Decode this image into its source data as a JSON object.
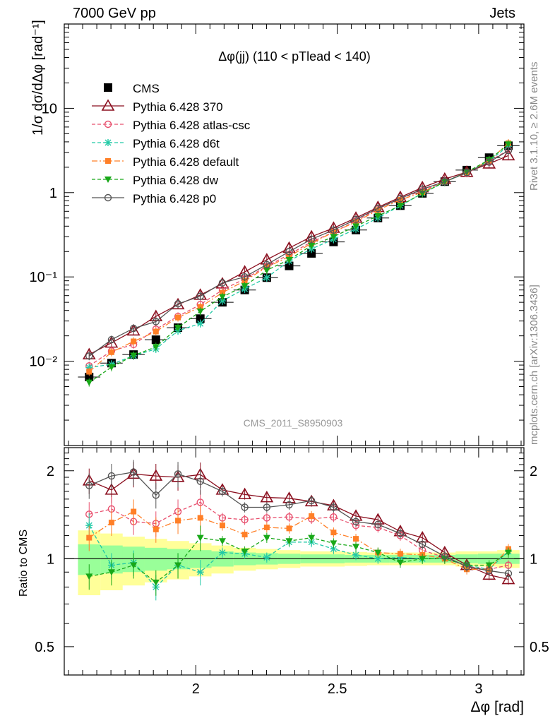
{
  "header": {
    "left": "7000 GeV pp",
    "right": "Jets"
  },
  "side": {
    "top": "Rivet 3.1.10, ≥ 2.6M events",
    "bottom": "mcplots.cern.ch [arXiv:1306.3436]"
  },
  "colors": {
    "cms": "#000000",
    "p370": "#8b0f1f",
    "atlas": "#e8506e",
    "d6t": "#22c9a6",
    "default": "#ff7f27",
    "dw": "#18a818",
    "p0": "#555555",
    "band_outer": "#ffff99",
    "band_inner": "#99ff99"
  },
  "chart_data": [
    {
      "type": "scatter",
      "title": "Δφ(jj) (110 < pTlead <  140)",
      "watermark": "CMS_2011_S8950903",
      "ylabel": "1/σ dσ/dΔφ [rad⁻¹]",
      "yscale": "log",
      "xlim": [
        1.535,
        3.16
      ],
      "ylim": [
        0.001,
        100
      ],
      "ytick_labels": [
        "10⁻²",
        "10⁻¹",
        "1",
        "10"
      ],
      "x": [
        1.623,
        1.702,
        1.78,
        1.859,
        1.937,
        2.016,
        2.094,
        2.173,
        2.251,
        2.33,
        2.409,
        2.487,
        2.566,
        2.644,
        2.723,
        2.801,
        2.88,
        2.958,
        3.037,
        3.105
      ],
      "series": [
        {
          "name": "CMS",
          "key": "cms",
          "values": [
            0.0065,
            0.0095,
            0.012,
            0.018,
            0.025,
            0.032,
            0.05,
            0.07,
            0.098,
            0.135,
            0.19,
            0.26,
            0.36,
            0.5,
            0.7,
            0.98,
            1.35,
            1.85,
            2.6,
            3.6
          ]
        },
        {
          "name": "Pythia 6.428 370",
          "key": "p370",
          "values": [
            0.012,
            0.0165,
            0.023,
            0.034,
            0.047,
            0.061,
            0.083,
            0.115,
            0.16,
            0.22,
            0.3,
            0.38,
            0.5,
            0.67,
            0.88,
            1.15,
            1.45,
            1.75,
            2.2,
            2.75
          ]
        },
        {
          "name": "Pythia 6.428 atlas-csc",
          "key": "atlas",
          "values": [
            0.0088,
            0.0132,
            0.0158,
            0.024,
            0.034,
            0.047,
            0.07,
            0.095,
            0.133,
            0.185,
            0.26,
            0.34,
            0.46,
            0.64,
            0.85,
            1.05,
            1.36,
            1.7,
            2.35,
            3.2
          ]
        },
        {
          "name": "Pythia 6.428 d6t",
          "key": "d6t",
          "values": [
            0.0084,
            0.0092,
            0.0116,
            0.014,
            0.023,
            0.028,
            0.052,
            0.072,
            0.098,
            0.155,
            0.215,
            0.28,
            0.37,
            0.5,
            0.7,
            0.98,
            1.33,
            1.73,
            2.4,
            3.55
          ]
        },
        {
          "name": "Pythia 6.428 default",
          "key": "default",
          "values": [
            0.0075,
            0.0128,
            0.0172,
            0.0225,
            0.033,
            0.044,
            0.065,
            0.09,
            0.13,
            0.175,
            0.25,
            0.34,
            0.45,
            0.62,
            0.82,
            1.01,
            1.34,
            1.73,
            2.4,
            3.85
          ]
        },
        {
          "name": "Pythia 6.428 dw",
          "key": "dw",
          "values": [
            0.0056,
            0.0085,
            0.0117,
            0.0148,
            0.025,
            0.039,
            0.058,
            0.078,
            0.12,
            0.16,
            0.235,
            0.3,
            0.4,
            0.53,
            0.7,
            0.98,
            1.34,
            1.75,
            2.45,
            3.75
          ]
        },
        {
          "name": "Pythia 6.428 p0",
          "key": "p0",
          "values": [
            0.0115,
            0.018,
            0.0245,
            0.0295,
            0.048,
            0.059,
            0.085,
            0.1,
            0.14,
            0.2,
            0.28,
            0.36,
            0.48,
            0.65,
            0.85,
            1.1,
            1.35,
            1.73,
            2.3,
            3.15
          ]
        }
      ]
    },
    {
      "type": "scatter",
      "ylabel": "Ratio to CMS",
      "xlabel": "Δφ [rad]",
      "yscale": "log",
      "xlim": [
        1.535,
        3.16
      ],
      "ylim": [
        0.4,
        2.4
      ],
      "xtick_labels": [
        "2",
        "2.5",
        "3"
      ],
      "ytick_labels": [
        "0.5",
        "1",
        "2"
      ],
      "x": [
        1.623,
        1.702,
        1.78,
        1.859,
        1.937,
        2.016,
        2.094,
        2.173,
        2.251,
        2.33,
        2.409,
        2.487,
        2.566,
        2.644,
        2.723,
        2.801,
        2.88,
        2.958,
        3.037,
        3.105
      ],
      "band_outer": [
        0.25,
        0.22,
        0.19,
        0.17,
        0.15,
        0.13,
        0.11,
        0.09,
        0.08,
        0.07,
        0.06,
        0.06,
        0.055,
        0.05,
        0.05,
        0.05,
        0.05,
        0.06,
        0.06,
        0.07
      ],
      "band_inner": [
        0.12,
        0.11,
        0.1,
        0.09,
        0.08,
        0.07,
        0.06,
        0.05,
        0.045,
        0.04,
        0.035,
        0.035,
        0.03,
        0.03,
        0.03,
        0.03,
        0.03,
        0.035,
        0.04,
        0.04
      ],
      "series": [
        {
          "name": "Pythia 6.428 370",
          "key": "p370",
          "values": [
            1.85,
            1.72,
            1.95,
            1.92,
            1.9,
            1.94,
            1.72,
            1.66,
            1.62,
            1.61,
            1.57,
            1.52,
            1.4,
            1.36,
            1.24,
            1.18,
            1.05,
            0.95,
            0.88,
            0.85
          ]
        },
        {
          "name": "Pythia 6.428 atlas-csc",
          "key": "atlas",
          "values": [
            1.42,
            1.48,
            1.34,
            1.32,
            1.45,
            1.56,
            1.38,
            1.36,
            1.38,
            1.39,
            1.37,
            1.39,
            1.3,
            1.28,
            1.2,
            1.07,
            1.01,
            0.94,
            0.92,
            0.95
          ]
        },
        {
          "name": "Pythia 6.428 d6t",
          "key": "d6t",
          "values": [
            1.3,
            0.95,
            0.97,
            0.8,
            0.95,
            0.9,
            1.05,
            1.04,
            1.01,
            1.14,
            1.14,
            1.08,
            1.03,
            1.0,
            1.01,
            1.0,
            1.0,
            0.95,
            0.92,
            1.06
          ]
        },
        {
          "name": "Pythia 6.428 default",
          "key": "default",
          "values": [
            1.18,
            1.33,
            1.45,
            1.26,
            1.35,
            1.38,
            1.3,
            1.21,
            1.28,
            1.27,
            1.4,
            1.23,
            1.17,
            1.05,
            1.04,
            1.03,
            1.0,
            0.92,
            0.92,
            1.08
          ]
        },
        {
          "name": "Pythia 6.428 dw",
          "key": "dw",
          "values": [
            0.87,
            0.9,
            0.95,
            0.83,
            0.95,
            1.18,
            1.15,
            1.06,
            1.18,
            1.15,
            1.18,
            1.13,
            1.1,
            1.05,
            0.97,
            1.0,
            1.0,
            0.95,
            0.95,
            1.05
          ]
        },
        {
          "name": "Pythia 6.428 p0",
          "key": "p0",
          "values": [
            1.78,
            1.92,
            1.98,
            1.65,
            1.95,
            1.84,
            1.7,
            1.5,
            1.5,
            1.53,
            1.58,
            1.5,
            1.34,
            1.31,
            1.22,
            1.12,
            1.02,
            0.94,
            0.91,
            0.89
          ]
        }
      ]
    }
  ]
}
